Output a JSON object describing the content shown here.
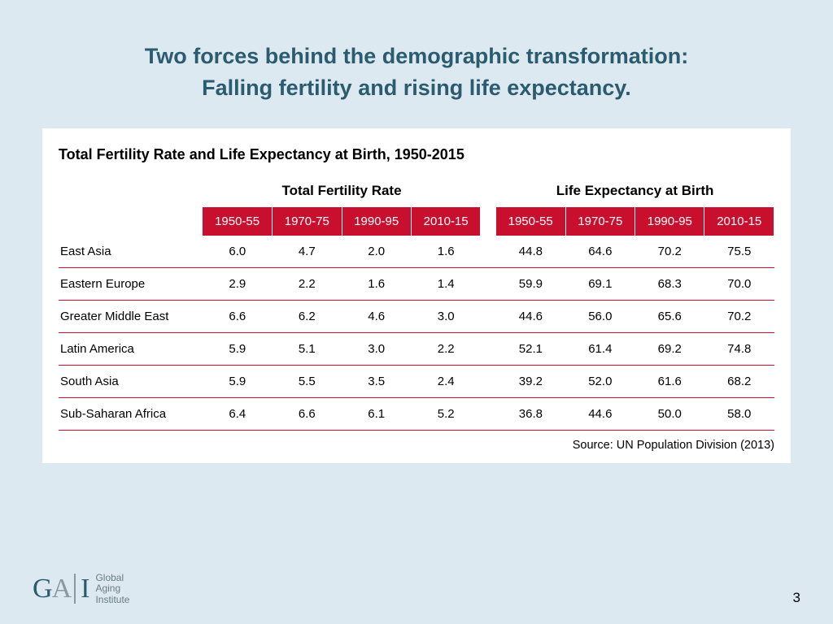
{
  "slide": {
    "title_line1": "Two forces behind the demographic transformation:",
    "title_line2": "Falling fertility and rising life expectancy."
  },
  "table": {
    "type": "table",
    "title": "Total Fertility Rate and Life Expectancy at Birth, 1950-2015",
    "group_headers": [
      "Total Fertility Rate",
      "Life Expectancy at Birth"
    ],
    "periods": [
      "1950-55",
      "1970-75",
      "1990-95",
      "2010-15"
    ],
    "rows": [
      {
        "region": "East Asia",
        "tfr": [
          "6.0",
          "4.7",
          "2.0",
          "1.6"
        ],
        "le": [
          "44.8",
          "64.6",
          "70.2",
          "75.5"
        ]
      },
      {
        "region": "Eastern Europe",
        "tfr": [
          "2.9",
          "2.2",
          "1.6",
          "1.4"
        ],
        "le": [
          "59.9",
          "69.1",
          "68.3",
          "70.0"
        ]
      },
      {
        "region": "Greater Middle East",
        "tfr": [
          "6.6",
          "6.2",
          "4.6",
          "3.0"
        ],
        "le": [
          "44.6",
          "56.0",
          "65.6",
          "70.2"
        ]
      },
      {
        "region": "Latin America",
        "tfr": [
          "5.9",
          "5.1",
          "3.0",
          "2.2"
        ],
        "le": [
          "52.1",
          "61.4",
          "69.2",
          "74.8"
        ]
      },
      {
        "region": "South Asia",
        "tfr": [
          "5.9",
          "5.5",
          "3.5",
          "2.4"
        ],
        "le": [
          "39.2",
          "52.0",
          "61.6",
          "68.2"
        ]
      },
      {
        "region": "Sub-Saharan Africa",
        "tfr": [
          "6.4",
          "6.6",
          "6.1",
          "5.2"
        ],
        "le": [
          "36.8",
          "44.6",
          "50.0",
          "58.0"
        ]
      }
    ],
    "source": "Source: UN Population Division (2013)",
    "colors": {
      "header_bg": "#c8102e",
      "header_text": "#ffffff",
      "row_divider": "#c8102e",
      "card_bg": "#ffffff",
      "slide_bg": "#dce9f1",
      "title_color": "#2b5b6e"
    },
    "font_sizes": {
      "title": 27,
      "table_title": 18,
      "group_header": 17,
      "period_header": 15,
      "body": 15,
      "source": 14.5
    }
  },
  "footer": {
    "logo_mark": {
      "g": "G",
      "a": "A",
      "i": "I"
    },
    "logo_text": {
      "l1": "Global",
      "l2": "Aging",
      "l3": "Institute"
    },
    "page_number": "3"
  }
}
